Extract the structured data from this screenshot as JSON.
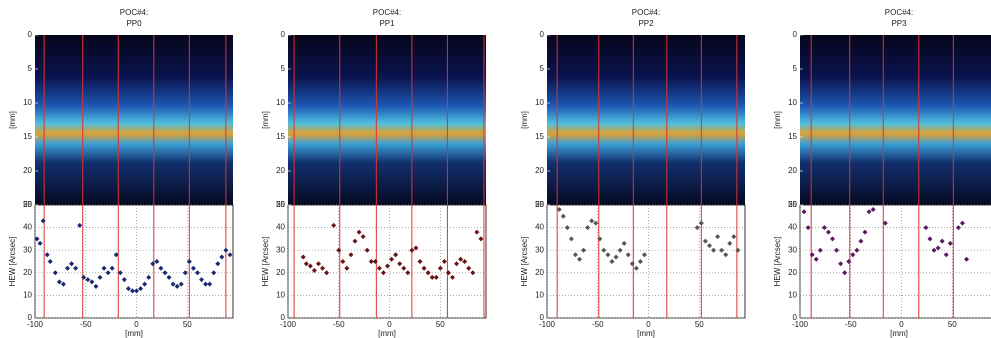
{
  "chart_data": [
    {
      "type": "scatter",
      "title": "POC#4:",
      "subtitle": "PP0",
      "color": "#1a2a6e",
      "image_ylabel": "[mm]",
      "image_ylim": [
        0,
        25
      ],
      "image_yticks": [
        0,
        5,
        10,
        15,
        20,
        25
      ],
      "ylabel": "HEW [Arcsec]",
      "xlabel": "[mm]",
      "xlim": [
        -100,
        95
      ],
      "xticks": [
        -100,
        -50,
        0,
        50
      ],
      "ylim": [
        0,
        50
      ],
      "yticks": [
        0,
        10,
        20,
        30,
        40,
        50
      ],
      "grid": true,
      "vlines": [
        -91,
        -53,
        -18,
        17,
        52,
        88
      ],
      "x": [
        -98,
        -95,
        -92,
        -88,
        -85,
        -80,
        -76,
        -72,
        -68,
        -64,
        -60,
        -56,
        -52,
        -48,
        -44,
        -40,
        -36,
        -32,
        -28,
        -24,
        -20,
        -16,
        -12,
        -8,
        -4,
        0,
        4,
        8,
        12,
        16,
        20,
        24,
        28,
        32,
        36,
        40,
        44,
        48,
        52,
        56,
        60,
        64,
        68,
        72,
        76,
        80,
        84,
        88,
        92
      ],
      "values": [
        35,
        33,
        43,
        28,
        25,
        20,
        16,
        15,
        22,
        24,
        22,
        41,
        18,
        17,
        16,
        14,
        18,
        22,
        20,
        22,
        28,
        20,
        17,
        13,
        12,
        12,
        13,
        15,
        18,
        24,
        25,
        22,
        20,
        18,
        15,
        14,
        15,
        20,
        25,
        22,
        20,
        17,
        15,
        15,
        20,
        24,
        27,
        30,
        28
      ]
    },
    {
      "type": "scatter",
      "title": "POC#4:",
      "subtitle": "PP1",
      "color": "#6b1414",
      "image_ylabel": "[mm]",
      "image_ylim": [
        0,
        25
      ],
      "image_yticks": [
        0,
        5,
        10,
        15,
        20,
        25
      ],
      "ylabel": "HEW [Arcsec]",
      "xlabel": "[mm]",
      "xlim": [
        -100,
        95
      ],
      "xticks": [
        -100,
        -50,
        0,
        50
      ],
      "ylim": [
        0,
        50
      ],
      "yticks": [
        0,
        10,
        20,
        30,
        40,
        50
      ],
      "grid": true,
      "vlines": [
        -94,
        -49,
        -13,
        22,
        57,
        93
      ],
      "x": [
        -85,
        -82,
        -78,
        -74,
        -70,
        -66,
        -62,
        -55,
        -50,
        -46,
        -42,
        -38,
        -34,
        -30,
        -26,
        -22,
        -18,
        -14,
        -10,
        -6,
        -2,
        2,
        6,
        10,
        14,
        18,
        22,
        26,
        30,
        34,
        38,
        42,
        46,
        50,
        54,
        58,
        62,
        66,
        70,
        74,
        78,
        82,
        86,
        90
      ],
      "values": [
        27,
        24,
        23,
        21,
        24,
        22,
        20,
        41,
        30,
        25,
        22,
        28,
        34,
        38,
        36,
        30,
        25,
        25,
        22,
        20,
        23,
        26,
        28,
        24,
        22,
        20,
        30,
        31,
        25,
        22,
        20,
        18,
        18,
        22,
        25,
        20,
        18,
        24,
        26,
        25,
        22,
        20,
        38,
        35
      ]
    },
    {
      "type": "scatter",
      "title": "POC#4:",
      "subtitle": "PP2",
      "color": "#555555",
      "image_ylabel": "[mm]",
      "image_ylim": [
        0,
        25
      ],
      "image_yticks": [
        0,
        5,
        10,
        15,
        20,
        25
      ],
      "ylabel": "HEW [Arcsec]",
      "xlabel": "[mm]",
      "xlim": [
        -100,
        95
      ],
      "xticks": [
        -100,
        -50,
        0,
        50
      ],
      "ylim": [
        0,
        50
      ],
      "yticks": [
        0,
        10,
        20,
        30,
        40,
        50
      ],
      "grid": true,
      "vlines": [
        -90,
        -49,
        -15,
        18,
        52,
        87
      ],
      "x": [
        -88,
        -84,
        -80,
        -76,
        -72,
        -68,
        -64,
        -60,
        -56,
        -52,
        -48,
        -44,
        -40,
        -36,
        -32,
        -28,
        -24,
        -20,
        -16,
        -12,
        -8,
        -4,
        48,
        52,
        56,
        60,
        64,
        68,
        72,
        76,
        80,
        84,
        88
      ],
      "values": [
        48,
        45,
        40,
        35,
        28,
        26,
        30,
        40,
        43,
        42,
        35,
        30,
        28,
        25,
        27,
        30,
        33,
        28,
        24,
        22,
        25,
        28,
        40,
        42,
        34,
        32,
        30,
        36,
        30,
        28,
        33,
        36,
        30
      ]
    },
    {
      "type": "scatter",
      "title": "POC#4:",
      "subtitle": "PP3",
      "color": "#5a1a5e",
      "image_ylabel": "[mm]",
      "image_ylim": [
        0,
        25
      ],
      "image_yticks": [
        0,
        5,
        10,
        15,
        20,
        25
      ],
      "ylabel": "HEW [Arcsec]",
      "xlabel": "[mm]",
      "xlim": [
        -100,
        95
      ],
      "xticks": [
        -100,
        -50,
        0,
        50
      ],
      "ylim": [
        0,
        50
      ],
      "yticks": [
        0,
        10,
        20,
        30,
        40,
        50
      ],
      "grid": true,
      "vlines": [
        -89,
        -51,
        -18,
        17,
        51
      ],
      "x": [
        -96,
        -92,
        -88,
        -84,
        -80,
        -76,
        -72,
        -68,
        -64,
        -60,
        -56,
        -52,
        -48,
        -44,
        -40,
        -36,
        -32,
        -28,
        -16,
        24,
        28,
        32,
        36,
        40,
        44,
        48,
        56,
        60,
        64
      ],
      "values": [
        47,
        40,
        28,
        26,
        30,
        40,
        38,
        35,
        30,
        24,
        20,
        25,
        28,
        30,
        34,
        38,
        47,
        48,
        42,
        40,
        35,
        30,
        31,
        34,
        28,
        33,
        40,
        42,
        26
      ]
    }
  ]
}
